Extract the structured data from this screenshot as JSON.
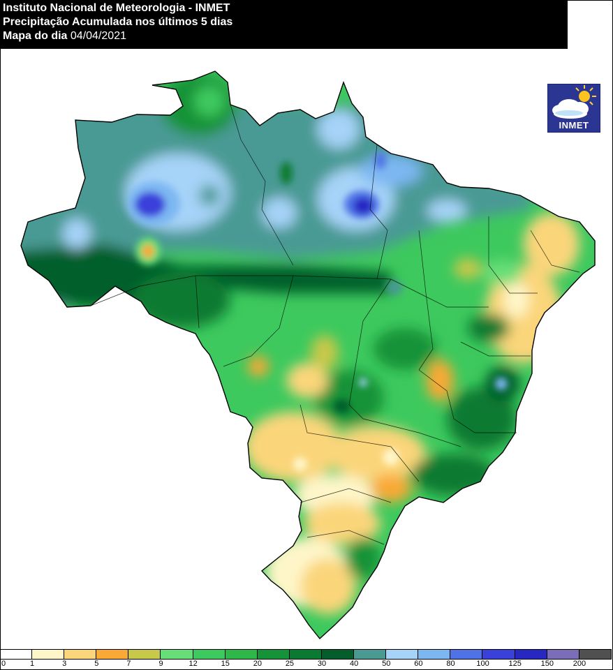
{
  "header": {
    "line1": "Instituto Nacional de Meteorologia - INMET",
    "line2": "Precipitação Acumulada nos últimos 5 dias",
    "line3_prefix": "Mapa do dia",
    "line3_date": "04/04/2021"
  },
  "logo": {
    "text": "INMET",
    "icon": "cloud-sun-icon"
  },
  "legend": {
    "ticks": [
      "0",
      "1",
      "3",
      "5",
      "7",
      "9",
      "12",
      "15",
      "20",
      "25",
      "30",
      "40",
      "50",
      "60",
      "80",
      "100",
      "125",
      "150",
      "200"
    ],
    "colors": [
      "#ffffff",
      "#fef6c9",
      "#fbd57a",
      "#f9a935",
      "#c8c84a",
      "#68de78",
      "#3dc95e",
      "#2fb74a",
      "#169338",
      "#0a7a33",
      "#045e2b",
      "#4a9a94",
      "#a6d3f8",
      "#7db7f2",
      "#4f73e6",
      "#3a40da",
      "#2727c2",
      "#7b6db8",
      "#505050"
    ]
  },
  "map": {
    "background": "#ffffff",
    "border_color": "#000000"
  }
}
